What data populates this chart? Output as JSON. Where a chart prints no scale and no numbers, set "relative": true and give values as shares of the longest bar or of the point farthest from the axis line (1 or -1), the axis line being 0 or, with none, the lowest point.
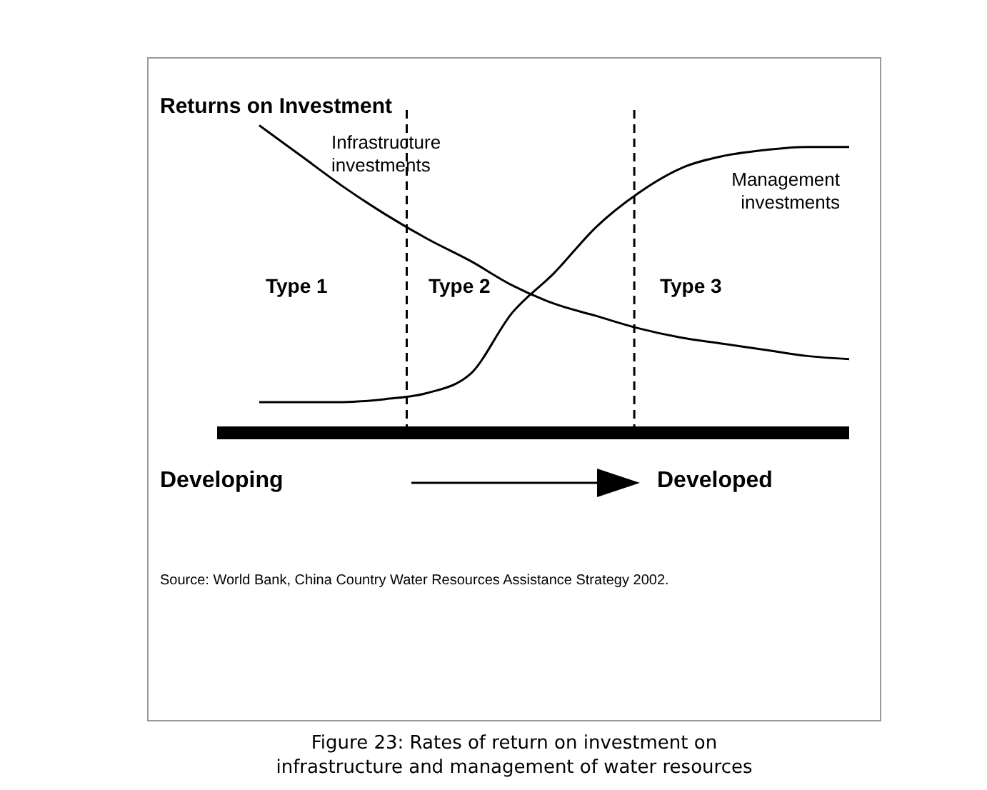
{
  "chart_data": {
    "type": "line",
    "relative": true,
    "ylabel": "Returns on Investment",
    "categories": [
      null,
      null,
      null,
      null,
      null,
      null,
      null,
      null,
      null,
      null,
      null,
      null,
      null,
      null,
      null
    ],
    "series": [
      {
        "name": "Infrastructure investments",
        "color": "#000000",
        "values": [
          1.0,
          0.9,
          0.8,
          0.71,
          0.63,
          0.56,
          0.48,
          0.42,
          0.38,
          0.34,
          0.31,
          0.29,
          0.27,
          0.25,
          0.24
        ]
      },
      {
        "name": "Management investments",
        "color": "#000000",
        "values": [
          0.1,
          0.1,
          0.1,
          0.11,
          0.13,
          0.19,
          0.39,
          0.52,
          0.67,
          0.78,
          0.86,
          0.9,
          0.92,
          0.93,
          0.93
        ]
      }
    ],
    "annotations": [
      "Type 1",
      "Type 2",
      "Type 3",
      "Developing",
      "Developed",
      "Source: World Bank, China Country Water Resources Assistance Strategy 2002.",
      "Figure 23:  Rates of return on investment on infrastructure and management of water resources"
    ],
    "legend": false,
    "marker": "none",
    "line_style": "solid"
  }
}
